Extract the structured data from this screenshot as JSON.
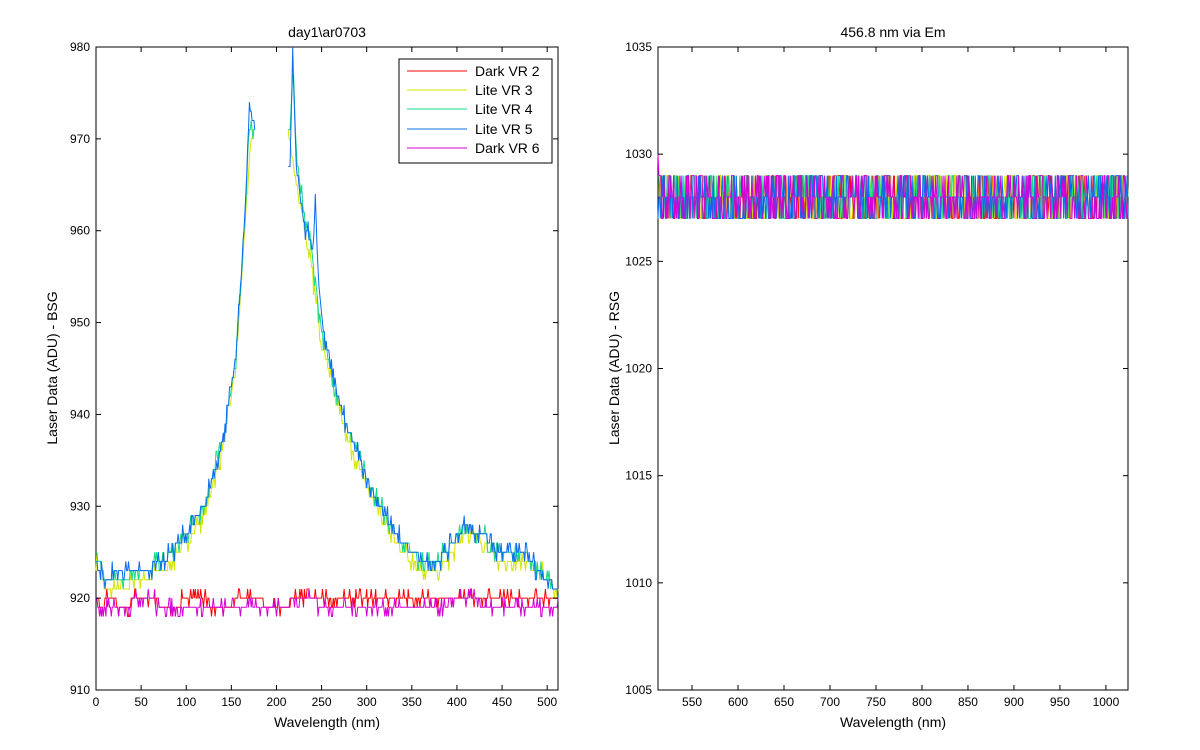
{
  "colors": {
    "Dark VR 2": "#ff0000",
    "Lite VR 3": "#d4e600",
    "Lite VR 4": "#16d988",
    "Lite VR 5": "#0a6cf0",
    "Dark VR 6": "#d400d4",
    "axis": "#000000",
    "background": "#ffffff"
  },
  "chart_data": [
    {
      "type": "line",
      "title": "day1\\ar0703",
      "xlabel": "Wavelength (nm)",
      "ylabel": "Laser Data (ADU) - BSG",
      "xlim": [
        0,
        512
      ],
      "ylim": [
        910,
        980
      ],
      "xticks": [
        0,
        50,
        100,
        150,
        200,
        250,
        300,
        350,
        400,
        450,
        500
      ],
      "yticks": [
        910,
        920,
        930,
        940,
        950,
        960,
        970,
        980
      ],
      "grid": false,
      "legend_position": "top-right",
      "legend": [
        "Dark VR 2",
        "Lite VR 3",
        "Lite VR 4",
        "Lite VR 5",
        "Dark VR 6"
      ],
      "series": [
        {
          "name": "Lite VR 3",
          "points": [
            [
              0,
              924
            ],
            [
              10,
              921
            ],
            [
              25,
              921
            ],
            [
              50,
              922
            ],
            [
              75,
              923
            ],
            [
              100,
              926
            ],
            [
              120,
              929
            ],
            [
              140,
              936
            ],
            [
              155,
              945
            ],
            [
              165,
              960
            ],
            [
              172,
              970
            ],
            [
              175,
              971
            ],
            [
              215,
              970
            ],
            [
              220,
              966
            ],
            [
              230,
              961
            ],
            [
              240,
              955
            ],
            [
              250,
              948
            ],
            [
              265,
              942
            ],
            [
              280,
              937
            ],
            [
              300,
              932
            ],
            [
              320,
              928
            ],
            [
              340,
              925
            ],
            [
              360,
              923
            ],
            [
              380,
              923
            ],
            [
              395,
              925
            ],
            [
              410,
              927
            ],
            [
              420,
              927
            ],
            [
              430,
              926
            ],
            [
              445,
              924
            ],
            [
              460,
              924
            ],
            [
              475,
              924
            ],
            [
              490,
              923
            ],
            [
              500,
              922
            ],
            [
              510,
              921
            ]
          ]
        },
        {
          "name": "Lite VR 4",
          "points": [
            [
              0,
              925
            ],
            [
              10,
              922
            ],
            [
              25,
              922
            ],
            [
              50,
              923
            ],
            [
              75,
              924
            ],
            [
              100,
              927
            ],
            [
              120,
              930
            ],
            [
              140,
              937
            ],
            [
              155,
              946
            ],
            [
              165,
              961
            ],
            [
              170,
              972
            ],
            [
              175,
              971
            ],
            [
              215,
              971
            ],
            [
              219,
              977
            ],
            [
              222,
              968
            ],
            [
              230,
              962
            ],
            [
              240,
              957
            ],
            [
              250,
              949
            ],
            [
              265,
              943
            ],
            [
              280,
              938
            ],
            [
              300,
              933
            ],
            [
              320,
              929
            ],
            [
              340,
              926
            ],
            [
              360,
              924
            ],
            [
              380,
              924
            ],
            [
              395,
              926
            ],
            [
              410,
              928
            ],
            [
              420,
              927
            ],
            [
              430,
              927
            ],
            [
              445,
              925
            ],
            [
              460,
              925
            ],
            [
              475,
              925
            ],
            [
              490,
              923
            ],
            [
              500,
              922
            ],
            [
              510,
              921
            ]
          ]
        },
        {
          "name": "Lite VR 5",
          "points": [
            [
              0,
              924
            ],
            [
              10,
              922
            ],
            [
              25,
              923
            ],
            [
              50,
              923
            ],
            [
              75,
              924
            ],
            [
              100,
              927
            ],
            [
              120,
              930
            ],
            [
              140,
              937
            ],
            [
              155,
              946
            ],
            [
              165,
              962
            ],
            [
              170,
              973
            ],
            [
              175,
              972
            ],
            [
              215,
              967
            ],
            [
              218,
              979
            ],
            [
              222,
              967
            ],
            [
              230,
              961
            ],
            [
              240,
              958
            ],
            [
              243,
              963
            ],
            [
              246,
              956
            ],
            [
              250,
              950
            ],
            [
              265,
              943
            ],
            [
              280,
              938
            ],
            [
              300,
              933
            ],
            [
              320,
              929
            ],
            [
              340,
              926
            ],
            [
              360,
              924
            ],
            [
              380,
              924
            ],
            [
              395,
              926
            ],
            [
              410,
              928
            ],
            [
              420,
              927
            ],
            [
              430,
              927
            ],
            [
              445,
              925
            ],
            [
              460,
              925
            ],
            [
              475,
              925
            ],
            [
              490,
              923
            ],
            [
              500,
              922
            ],
            [
              510,
              921
            ]
          ]
        },
        {
          "name": "Dark VR 2",
          "points": [
            [
              0,
              921
            ],
            [
              5,
              919
            ],
            [
              15,
              920
            ],
            [
              30,
              919
            ],
            [
              50,
              920
            ],
            [
              80,
              919
            ],
            [
              110,
              920
            ],
            [
              140,
              919
            ],
            [
              170,
              920
            ],
            [
              200,
              919
            ],
            [
              230,
              920
            ],
            [
              260,
              920
            ],
            [
              290,
              920
            ],
            [
              320,
              920
            ],
            [
              350,
              920
            ],
            [
              380,
              920
            ],
            [
              410,
              920
            ],
            [
              440,
              920
            ],
            [
              470,
              920
            ],
            [
              500,
              920
            ],
            [
              510,
              920
            ]
          ]
        },
        {
          "name": "Dark VR 6",
          "points": [
            [
              0,
              920
            ],
            [
              5,
              918
            ],
            [
              15,
              919
            ],
            [
              30,
              919
            ],
            [
              50,
              920
            ],
            [
              80,
              919
            ],
            [
              110,
              919
            ],
            [
              140,
              919
            ],
            [
              170,
              919
            ],
            [
              200,
              919
            ],
            [
              230,
              920
            ],
            [
              260,
              919
            ],
            [
              290,
              919
            ],
            [
              320,
              919
            ],
            [
              350,
              919
            ],
            [
              380,
              919
            ],
            [
              410,
              920
            ],
            [
              440,
              919
            ],
            [
              470,
              919
            ],
            [
              500,
              919
            ],
            [
              510,
              919
            ]
          ]
        }
      ]
    },
    {
      "type": "line",
      "title": "456.8 nm via Em",
      "xlabel": "Wavelength (nm)",
      "ylabel": "Laser Data (ADU) - RSG",
      "xlim": [
        513,
        1024
      ],
      "ylim": [
        1005,
        1035
      ],
      "xticks": [
        550,
        600,
        650,
        700,
        750,
        800,
        850,
        900,
        950,
        1000
      ],
      "yticks": [
        1005,
        1010,
        1015,
        1020,
        1025,
        1030,
        1035
      ],
      "grid": false,
      "series": [
        {
          "name": "Dark VR 2",
          "points": [
            [
              513,
              1033
            ],
            [
              515,
              1029
            ],
            [
              520,
              1028
            ],
            [
              1024,
              1028
            ]
          ],
          "band": [
            1027,
            1029
          ]
        },
        {
          "name": "Lite VR 3",
          "points": [
            [
              513,
              1030
            ],
            [
              515,
              1028
            ],
            [
              1024,
              1028
            ]
          ],
          "band": [
            1027,
            1029
          ]
        },
        {
          "name": "Lite VR 4",
          "points": [
            [
              513,
              1029
            ],
            [
              515,
              1028
            ],
            [
              1024,
              1028
            ]
          ],
          "band": [
            1026,
            1029
          ]
        },
        {
          "name": "Lite VR 5",
          "points": [
            [
              513,
              1028
            ],
            [
              1024,
              1028
            ]
          ],
          "band": [
            1027,
            1030
          ]
        },
        {
          "name": "Dark VR 6",
          "points": [
            [
              513,
              1031
            ],
            [
              516,
              1028
            ],
            [
              1024,
              1028
            ]
          ],
          "band": [
            1026,
            1030
          ]
        }
      ]
    }
  ]
}
